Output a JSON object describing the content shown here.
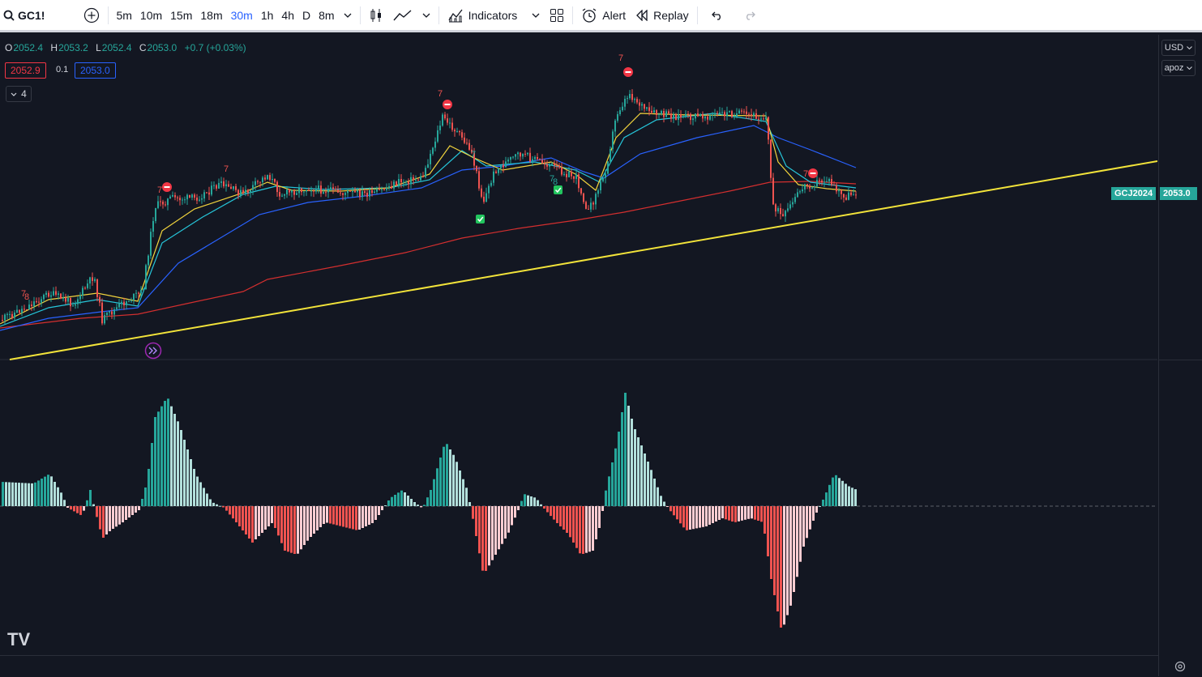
{
  "toolbar": {
    "symbol": "GC1!",
    "timeframes": [
      "5m",
      "10m",
      "15m",
      "18m",
      "30m",
      "1h",
      "4h",
      "D",
      "8m"
    ],
    "active_timeframe": "30m",
    "indicators_label": "Indicators",
    "alert_label": "Alert",
    "replay_label": "Replay"
  },
  "legend": {
    "open_key": "O",
    "open": "2052.4",
    "high_key": "H",
    "high": "2053.2",
    "low_key": "L",
    "low": "2052.4",
    "close_key": "C",
    "close": "2053.0",
    "change": "+0.7 (+0.03%)",
    "bid": "2052.9",
    "spread": "0.1",
    "ask": "2053.0",
    "collapsed_count": "4"
  },
  "axis": {
    "currency": "USD",
    "unit": "apoz",
    "contract_label": "GCJ2024",
    "last_price": "2053.0"
  },
  "markers": {
    "seven": "7",
    "eight": "8"
  },
  "colors": {
    "background": "#131722",
    "up": "#26a69a",
    "down": "#ef5350",
    "trendline": "#f2e33a",
    "ema_fast": "#f2d43d",
    "ema_mid": "#26c6da",
    "ema_slow": "#2962ff",
    "ema_long": "#d32f2f",
    "accent": "#2962ff"
  }
}
